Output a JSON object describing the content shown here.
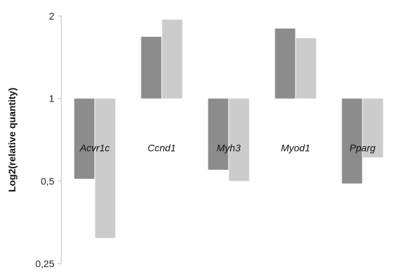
{
  "chart_data": {
    "type": "bar",
    "ylabel": "Log2(relative quantity)",
    "xlabel": "",
    "y_scale": "log2",
    "ylim": [
      0.25,
      2
    ],
    "baseline": 1,
    "y_ticks": [
      {
        "value": 0.25,
        "label": "0,25"
      },
      {
        "value": 0.5,
        "label": "0,5"
      },
      {
        "value": 1,
        "label": "1"
      },
      {
        "value": 2,
        "label": "2"
      }
    ],
    "grid": false,
    "legend": "none",
    "categories": [
      "Acvr1c",
      "Ccnd1",
      "Myh3",
      "Myod1",
      "Pparg"
    ],
    "series": [
      {
        "color": "#8c8c8c",
        "values": [
          0.51,
          1.68,
          0.55,
          1.8,
          0.49
        ]
      },
      {
        "color": "#cccccc",
        "values": [
          0.31,
          1.94,
          0.5,
          1.66,
          0.61
        ]
      }
    ]
  }
}
